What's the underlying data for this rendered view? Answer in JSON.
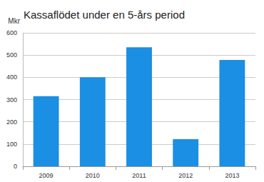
{
  "chart_data": {
    "type": "bar",
    "title": "Kassaflödet under en 5-års period",
    "y_label": "Mkr",
    "categories": [
      "2009",
      "2010",
      "2011",
      "2012",
      "2013"
    ],
    "values": [
      315,
      400,
      535,
      122,
      478
    ],
    "color": "#1a8fe3",
    "ylim": [
      0,
      600
    ],
    "yticks": [
      0,
      100,
      200,
      300,
      400,
      500,
      600
    ],
    "grid": true
  }
}
